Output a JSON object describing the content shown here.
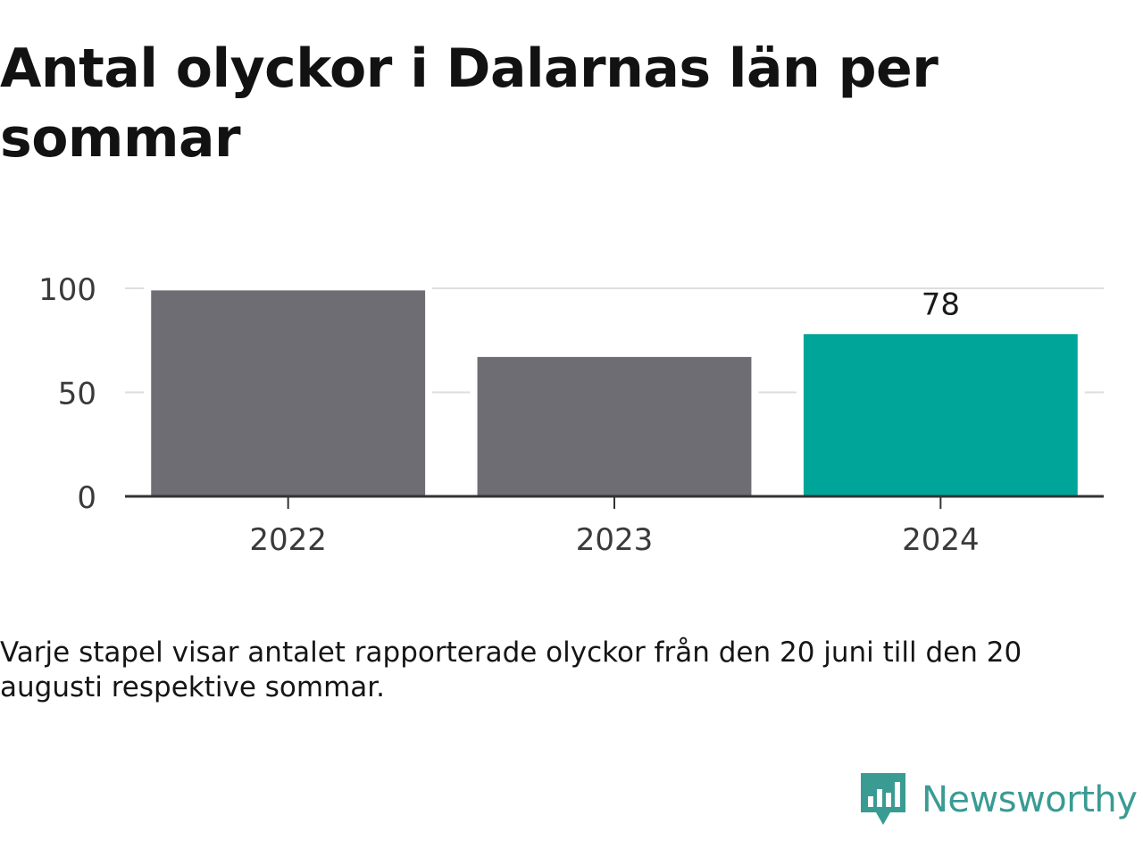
{
  "title": "Antal olyckor i Dalarnas län per sommar",
  "note": "Varje stapel visar antalet rapporterade olyckor från den 20 juni till den 20 augusti respektive sommar.",
  "brand": {
    "name": "Newsworthy",
    "color": "#3a9b93"
  },
  "chart_data": {
    "type": "bar",
    "categories": [
      "2022",
      "2023",
      "2024"
    ],
    "values": [
      99,
      67,
      78
    ],
    "labeled_values": [
      null,
      null,
      "78"
    ],
    "bar_colors": [
      "#6e6d74",
      "#6e6d74",
      "#00a59a"
    ],
    "yticks": [
      0,
      50,
      100
    ],
    "ylim": [
      0,
      100
    ],
    "grid": true,
    "legend": "none"
  }
}
